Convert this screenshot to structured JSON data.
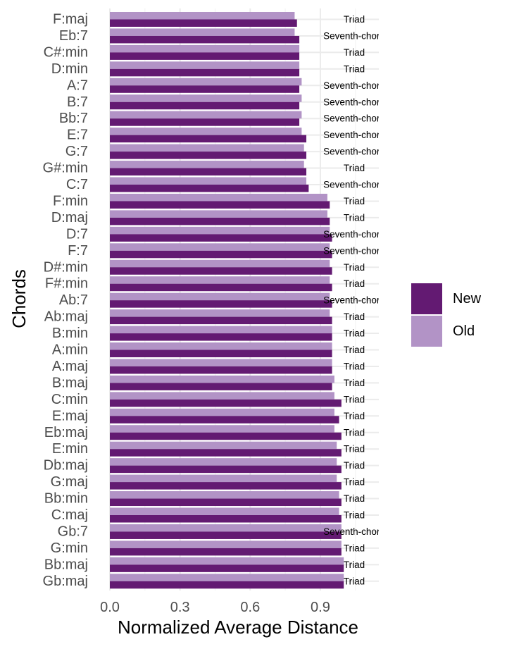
{
  "chart_data": {
    "type": "bar",
    "orientation": "horizontal",
    "xlabel": "Normalized Average Distance",
    "ylabel": "Chords",
    "xlim": [
      0,
      1.15
    ],
    "xticks": [
      0.0,
      0.3,
      0.6,
      0.9
    ],
    "xtick_labels": [
      "0.0",
      "0.3",
      "0.6",
      "0.9"
    ],
    "grid": true,
    "legend_position": "right",
    "categories": [
      "F:maj",
      "Eb:7",
      "C#:min",
      "D:min",
      "A:7",
      "B:7",
      "Bb:7",
      "E:7",
      "G:7",
      "G#:min",
      "C:7",
      "F:min",
      "D:maj",
      "D:7",
      "F:7",
      "D#:min",
      "F#:min",
      "Ab:7",
      "Ab:maj",
      "B:min",
      "A:min",
      "A:maj",
      "B:maj",
      "C:min",
      "E:maj",
      "Eb:maj",
      "E:min",
      "Db:maj",
      "G:maj",
      "Bb:min",
      "C:maj",
      "Gb:7",
      "G:min",
      "Bb:maj",
      "Gb:maj"
    ],
    "category_labels": [
      "Triad",
      "Seventh-chord",
      "Triad",
      "Triad",
      "Seventh-chord",
      "Seventh-chord",
      "Seventh-chord",
      "Seventh-chord",
      "Seventh-chord",
      "Triad",
      "Seventh-chord",
      "Triad",
      "Triad",
      "Seventh-chord",
      "Seventh-chord",
      "Triad",
      "Triad",
      "Seventh-chord",
      "Triad",
      "Triad",
      "Triad",
      "Triad",
      "Triad",
      "Triad",
      "Triad",
      "Triad",
      "Triad",
      "Triad",
      "Triad",
      "Triad",
      "Triad",
      "Seventh-chord",
      "Triad",
      "Triad",
      "Triad"
    ],
    "series": [
      {
        "name": "Old",
        "color": "#b293c6",
        "values": [
          0.79,
          0.79,
          0.81,
          0.81,
          0.82,
          0.82,
          0.82,
          0.82,
          0.83,
          0.83,
          0.84,
          0.93,
          0.93,
          0.94,
          0.94,
          0.94,
          0.94,
          0.94,
          0.94,
          0.95,
          0.95,
          0.95,
          0.96,
          0.96,
          0.96,
          0.96,
          0.97,
          0.97,
          0.97,
          0.98,
          0.98,
          0.99,
          0.99,
          1.0,
          1.0
        ]
      },
      {
        "name": "New",
        "color": "#631a72",
        "values": [
          0.8,
          0.81,
          0.81,
          0.81,
          0.81,
          0.81,
          0.81,
          0.84,
          0.84,
          0.84,
          0.85,
          0.94,
          0.94,
          0.95,
          0.95,
          0.95,
          0.95,
          0.95,
          0.95,
          0.95,
          0.95,
          0.95,
          0.95,
          0.99,
          0.98,
          0.99,
          0.99,
          0.99,
          0.99,
          0.99,
          0.99,
          0.99,
          0.99,
          1.0,
          1.0
        ]
      }
    ],
    "legend": [
      {
        "name": "New",
        "color": "#631a72"
      },
      {
        "name": "Old",
        "color": "#b293c6"
      }
    ]
  }
}
